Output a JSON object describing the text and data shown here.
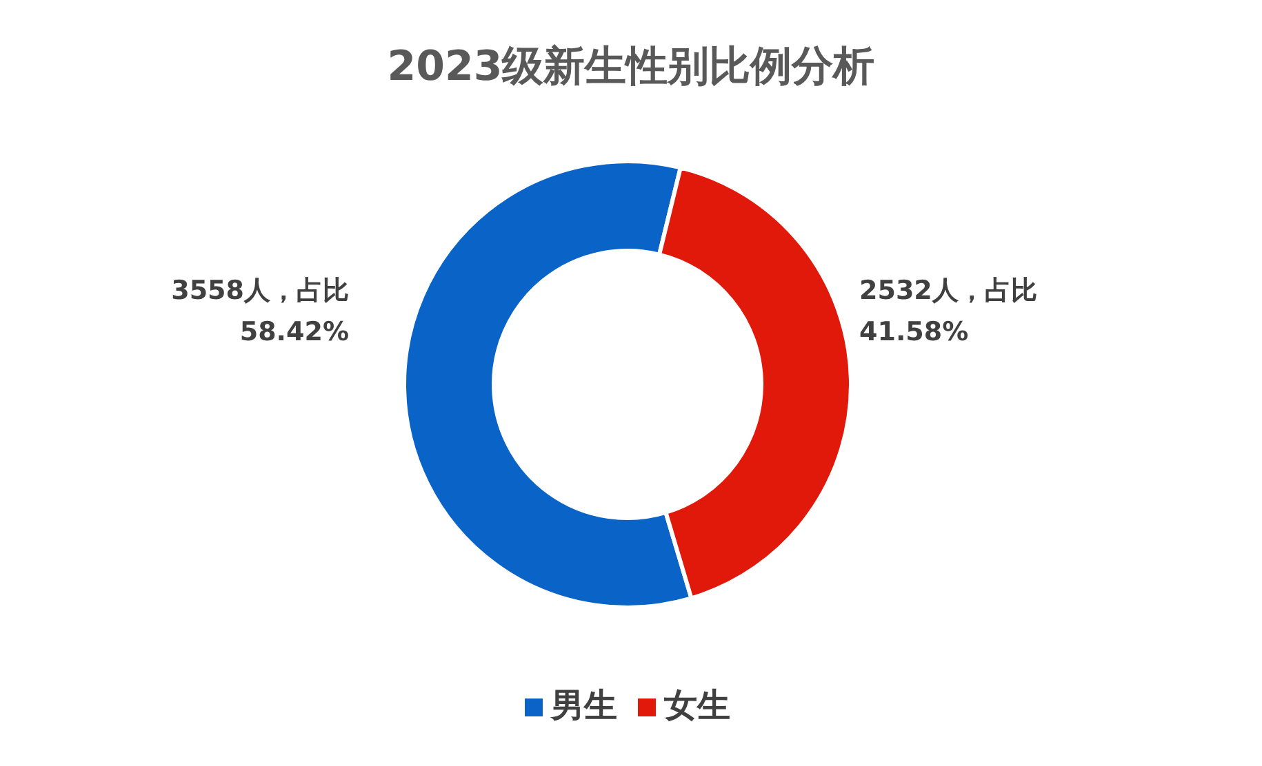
{
  "chart_data": {
    "type": "donut",
    "title": "2023级新生性别比例分析",
    "categories": [
      "男生",
      "女生"
    ],
    "values": [
      3558,
      2532
    ],
    "colors": [
      "#0a64c8",
      "#e0190b"
    ],
    "value_labels": [
      "3558人，占比\n58.42%",
      "2532人，占比\n41.58%"
    ],
    "legend": "bottom"
  }
}
